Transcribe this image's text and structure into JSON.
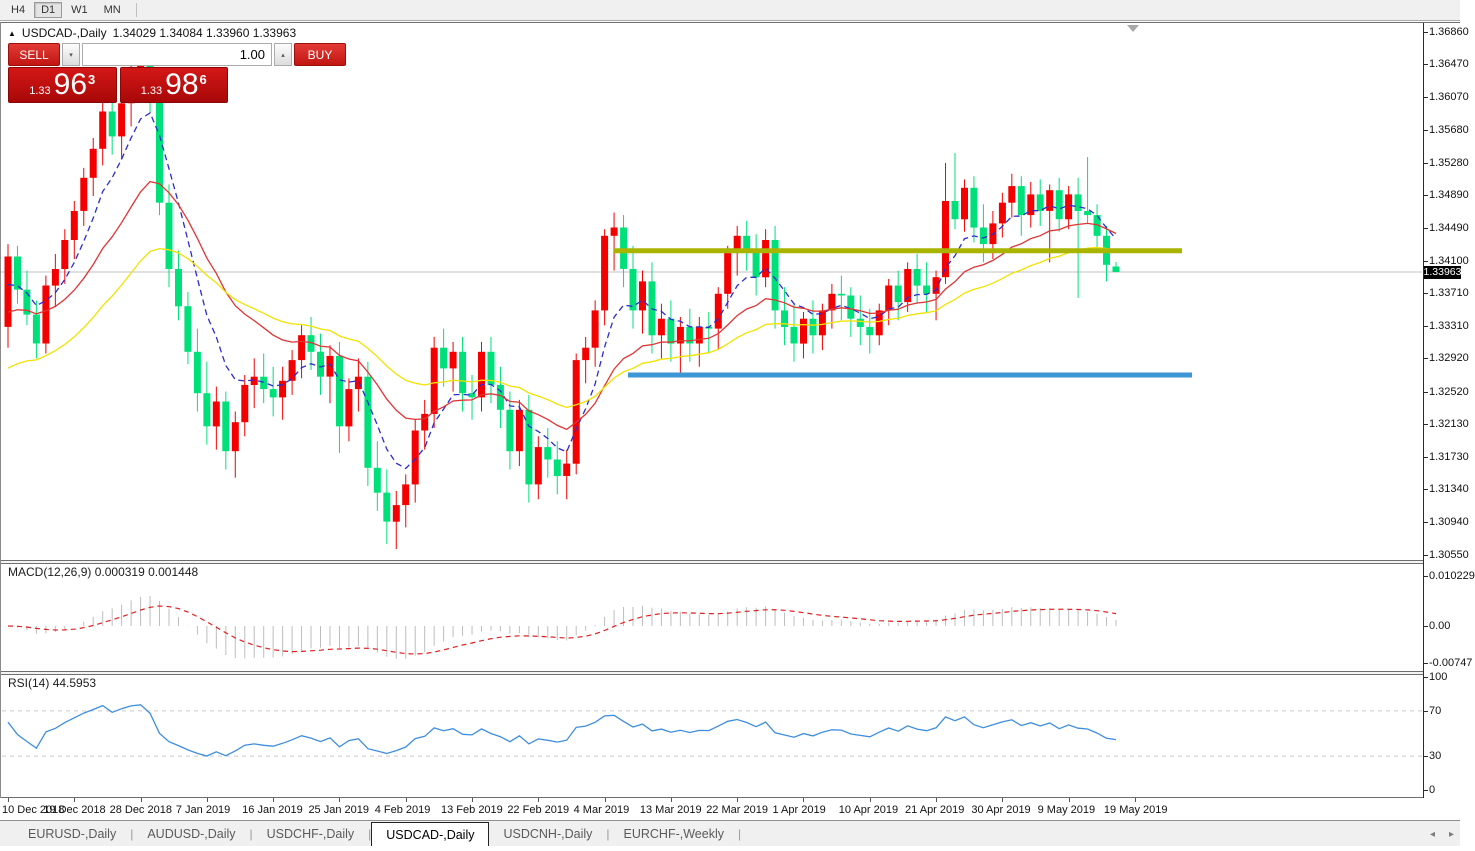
{
  "toolbar": {
    "timeframes": [
      {
        "label": "H4",
        "active": false
      },
      {
        "label": "D1",
        "active": true
      },
      {
        "label": "W1",
        "active": false
      },
      {
        "label": "MN",
        "active": false
      }
    ]
  },
  "chart_header": {
    "collapse_icon": "▲",
    "symbol_title": "USDCAD-,Daily",
    "ohlc_text": "1.34029 1.34084 1.33960 1.33963"
  },
  "one_click_panel": {
    "sell_label": "SELL",
    "buy_label": "BUY",
    "volume": "1.00",
    "spinner_down": "▾",
    "spinner_up": "▴",
    "sell_price": {
      "big_figure": "1.33",
      "pips": "96",
      "pipette": "3"
    },
    "buy_price": {
      "big_figure": "1.33",
      "pips": "98",
      "pipette": "6"
    }
  },
  "price_axis": {
    "labels": [
      "1.36860",
      "1.36470",
      "1.36070",
      "1.35680",
      "1.35280",
      "1.34890",
      "1.34490",
      "1.34100",
      "1.33710",
      "1.33310",
      "1.32920",
      "1.32520",
      "1.32130",
      "1.31730",
      "1.31340",
      "1.30940",
      "1.30550"
    ],
    "current_price": "1.33963"
  },
  "date_axis": {
    "labels": [
      "10 Dec 2018",
      "19 Dec 2018",
      "28 Dec 2018",
      "7 Jan 2019",
      "16 Jan 2019",
      "25 Jan 2019",
      "4 Feb 2019",
      "13 Feb 2019",
      "22 Feb 2019",
      "4 Mar 2019",
      "13 Mar 2019",
      "22 Mar 2019",
      "1 Apr 2019",
      "10 Apr 2019",
      "21 Apr 2019",
      "30 Apr 2019",
      "9 May 2019",
      "19 May 2019"
    ]
  },
  "macd_panel": {
    "name_label": "MACD(12,26,9)",
    "value_main": "0.000319",
    "value_signal": "0.001448",
    "axis_labels": [
      "0.010229",
      "0.00",
      "-0.00747"
    ]
  },
  "rsi_panel": {
    "name_label": "RSI(14)",
    "value": "44.5953",
    "axis_labels": [
      "100",
      "70",
      "30",
      "0"
    ]
  },
  "tabs": [
    {
      "label": "EURUSD-,Daily",
      "active": false
    },
    {
      "label": "AUDUSD-,Daily",
      "active": false
    },
    {
      "label": "USDCHF-,Daily",
      "active": false
    },
    {
      "label": "USDCAD-,Daily",
      "active": true
    },
    {
      "label": "USDCNH-,Daily",
      "active": false
    },
    {
      "label": "EURCHF-,Weekly",
      "active": false
    }
  ],
  "nav_arrows": {
    "left": "◂",
    "right": "▸"
  },
  "chart_data": {
    "type": "candlestick",
    "symbol": "USDCAD-",
    "timeframe": "Daily",
    "last_ohlc": {
      "open": 1.34029,
      "high": 1.34084,
      "low": 1.3396,
      "close": 1.33963
    },
    "price_axis_top": 1.3686,
    "price_axis_bottom": 1.3055,
    "bull_color": "#f40000",
    "bear_color": "#00e07a",
    "candles": [
      [
        1.333,
        1.343,
        1.3305,
        1.3415
      ],
      [
        1.3415,
        1.3428,
        1.3358,
        1.3375
      ],
      [
        1.3375,
        1.3398,
        1.3332,
        1.3345
      ],
      [
        1.3345,
        1.3362,
        1.3292,
        1.331
      ],
      [
        1.331,
        1.3392,
        1.3298,
        1.338
      ],
      [
        1.338,
        1.3418,
        1.3355,
        1.34
      ],
      [
        1.34,
        1.3448,
        1.3382,
        1.3435
      ],
      [
        1.3435,
        1.3482,
        1.3412,
        1.347
      ],
      [
        1.347,
        1.3522,
        1.3452,
        1.351
      ],
      [
        1.351,
        1.3558,
        1.3488,
        1.3545
      ],
      [
        1.3545,
        1.3602,
        1.3525,
        1.359
      ],
      [
        1.359,
        1.3618,
        1.3538,
        1.356
      ],
      [
        1.356,
        1.3612,
        1.3532,
        1.36
      ],
      [
        1.36,
        1.3648,
        1.3572,
        1.3635
      ],
      [
        1.3635,
        1.3662,
        1.3605,
        1.365
      ],
      [
        1.365,
        1.3664,
        1.3588,
        1.361
      ],
      [
        1.361,
        1.3628,
        1.3465,
        1.348
      ],
      [
        1.348,
        1.3502,
        1.3378,
        1.34
      ],
      [
        1.34,
        1.3422,
        1.3338,
        1.3355
      ],
      [
        1.3355,
        1.3372,
        1.3285,
        1.33
      ],
      [
        1.33,
        1.3328,
        1.3228,
        1.325
      ],
      [
        1.325,
        1.3288,
        1.3188,
        1.321
      ],
      [
        1.321,
        1.3258,
        1.3182,
        1.324
      ],
      [
        1.324,
        1.3252,
        1.3158,
        1.318
      ],
      [
        1.318,
        1.3228,
        1.3148,
        1.3215
      ],
      [
        1.3215,
        1.3272,
        1.3198,
        1.326
      ],
      [
        1.326,
        1.3292,
        1.3232,
        1.327
      ],
      [
        1.327,
        1.3298,
        1.3238,
        1.3255
      ],
      [
        1.3255,
        1.3282,
        1.3222,
        1.3245
      ],
      [
        1.3245,
        1.3282,
        1.3218,
        1.3265
      ],
      [
        1.3265,
        1.3302,
        1.3248,
        1.329
      ],
      [
        1.329,
        1.3332,
        1.3268,
        1.332
      ],
      [
        1.332,
        1.3342,
        1.3278,
        1.33
      ],
      [
        1.33,
        1.3322,
        1.3248,
        1.327
      ],
      [
        1.327,
        1.3308,
        1.3238,
        1.3295
      ],
      [
        1.3295,
        1.3312,
        1.3178,
        1.321
      ],
      [
        1.321,
        1.3268,
        1.3192,
        1.3255
      ],
      [
        1.3255,
        1.3292,
        1.3228,
        1.327
      ],
      [
        1.327,
        1.3288,
        1.3138,
        1.316
      ],
      [
        1.316,
        1.3192,
        1.3108,
        1.313
      ],
      [
        1.313,
        1.3158,
        1.3068,
        1.3095
      ],
      [
        1.3095,
        1.3132,
        1.3062,
        1.3115
      ],
      [
        1.3115,
        1.3152,
        1.3088,
        1.314
      ],
      [
        1.314,
        1.3218,
        1.3118,
        1.3205
      ],
      [
        1.3205,
        1.3242,
        1.3182,
        1.3225
      ],
      [
        1.3225,
        1.3318,
        1.3208,
        1.3305
      ],
      [
        1.3305,
        1.3328,
        1.3258,
        1.328
      ],
      [
        1.328,
        1.3312,
        1.3252,
        1.33
      ],
      [
        1.33,
        1.3318,
        1.3228,
        1.325
      ],
      [
        1.325,
        1.3272,
        1.3218,
        1.3245
      ],
      [
        1.3245,
        1.3312,
        1.3228,
        1.33
      ],
      [
        1.33,
        1.3318,
        1.3238,
        1.326
      ],
      [
        1.326,
        1.3282,
        1.3208,
        1.323
      ],
      [
        1.323,
        1.3252,
        1.3158,
        1.318
      ],
      [
        1.318,
        1.3242,
        1.3162,
        1.323
      ],
      [
        1.323,
        1.3248,
        1.3118,
        1.314
      ],
      [
        1.314,
        1.3198,
        1.3122,
        1.3185
      ],
      [
        1.3185,
        1.3208,
        1.3148,
        1.317
      ],
      [
        1.317,
        1.3192,
        1.3128,
        1.315
      ],
      [
        1.315,
        1.3182,
        1.3122,
        1.3165
      ],
      [
        1.3165,
        1.3298,
        1.3152,
        1.329
      ],
      [
        1.329,
        1.3318,
        1.3262,
        1.3305
      ],
      [
        1.3305,
        1.3362,
        1.3282,
        1.335
      ],
      [
        1.335,
        1.3448,
        1.3332,
        1.344
      ],
      [
        1.344,
        1.3468,
        1.3398,
        1.345
      ],
      [
        1.345,
        1.3465,
        1.3378,
        1.34
      ],
      [
        1.34,
        1.3428,
        1.3328,
        1.335
      ],
      [
        1.335,
        1.3398,
        1.3322,
        1.3385
      ],
      [
        1.3385,
        1.3408,
        1.3298,
        1.332
      ],
      [
        1.332,
        1.3358,
        1.3292,
        1.334
      ],
      [
        1.334,
        1.3362,
        1.3288,
        1.331
      ],
      [
        1.331,
        1.3342,
        1.3272,
        1.333
      ],
      [
        1.333,
        1.3352,
        1.3288,
        1.331
      ],
      [
        1.331,
        1.3342,
        1.3282,
        1.333
      ],
      [
        1.333,
        1.3348,
        1.3298,
        1.3328
      ],
      [
        1.3328,
        1.3378,
        1.3302,
        1.337
      ],
      [
        1.337,
        1.3428,
        1.3352,
        1.342
      ],
      [
        1.342,
        1.3452,
        1.3392,
        1.344
      ],
      [
        1.344,
        1.3458,
        1.3398,
        1.342
      ],
      [
        1.342,
        1.3442,
        1.3368,
        1.339
      ],
      [
        1.339,
        1.3448,
        1.3378,
        1.3435
      ],
      [
        1.3435,
        1.3452,
        1.3328,
        1.335
      ],
      [
        1.335,
        1.3378,
        1.3308,
        1.333
      ],
      [
        1.333,
        1.3358,
        1.3288,
        1.331
      ],
      [
        1.331,
        1.3348,
        1.3292,
        1.334
      ],
      [
        1.334,
        1.3362,
        1.3298,
        1.332
      ],
      [
        1.332,
        1.3358,
        1.3302,
        1.335
      ],
      [
        1.335,
        1.3382,
        1.3328,
        1.337
      ],
      [
        1.337,
        1.3392,
        1.3338,
        1.3368
      ],
      [
        1.3368,
        1.3378,
        1.3318,
        1.334
      ],
      [
        1.334,
        1.3368,
        1.3308,
        1.333
      ],
      [
        1.333,
        1.3352,
        1.3298,
        1.332
      ],
      [
        1.332,
        1.3358,
        1.3308,
        1.335
      ],
      [
        1.335,
        1.3388,
        1.3332,
        1.338
      ],
      [
        1.338,
        1.3398,
        1.3338,
        1.336
      ],
      [
        1.336,
        1.3408,
        1.3348,
        1.34
      ],
      [
        1.34,
        1.3418,
        1.3358,
        1.338
      ],
      [
        1.338,
        1.3408,
        1.3348,
        1.337
      ],
      [
        1.337,
        1.3398,
        1.3338,
        1.339
      ],
      [
        1.339,
        1.3528,
        1.3382,
        1.3482
      ],
      [
        1.3482,
        1.354,
        1.3448,
        1.346
      ],
      [
        1.346,
        1.3508,
        1.3445,
        1.3498
      ],
      [
        1.3498,
        1.3512,
        1.3432,
        1.345
      ],
      [
        1.345,
        1.3478,
        1.3408,
        1.343
      ],
      [
        1.343,
        1.347,
        1.3412,
        1.3455
      ],
      [
        1.3455,
        1.3492,
        1.3438,
        1.348
      ],
      [
        1.348,
        1.3515,
        1.3462,
        1.35
      ],
      [
        1.35,
        1.3512,
        1.344,
        1.3465
      ],
      [
        1.3465,
        1.3505,
        1.345,
        1.349
      ],
      [
        1.349,
        1.3508,
        1.3452,
        1.347
      ],
      [
        1.347,
        1.3502,
        1.3408,
        1.3495
      ],
      [
        1.3495,
        1.351,
        1.3445,
        1.346
      ],
      [
        1.346,
        1.35,
        1.3448,
        1.349
      ],
      [
        1.349,
        1.351,
        1.3365,
        1.347
      ],
      [
        1.347,
        1.3535,
        1.3455,
        1.3465
      ],
      [
        1.3465,
        1.3478,
        1.342,
        1.344
      ],
      [
        1.344,
        1.3452,
        1.3385,
        1.3405
      ],
      [
        1.34029,
        1.34084,
        1.3396,
        1.33963
      ]
    ],
    "moving_averages": [
      {
        "period": 7,
        "seed": 1.337,
        "color": "#2b2bd0",
        "style": "dashed"
      },
      {
        "period": 18,
        "seed": 1.334,
        "color": "#e03434",
        "style": "solid"
      },
      {
        "period": 34,
        "seed": 1.3272,
        "color": "#f2e200",
        "style": "solid"
      }
    ],
    "hlines": [
      {
        "name": "resistance-line",
        "price": 1.3422,
        "from_bar": 64,
        "to_bar": 124,
        "color": "#a8b400",
        "width": 5
      },
      {
        "name": "support-line",
        "price": 1.3272,
        "from_bar": 65.5,
        "to_bar": 125,
        "color": "#3d96d5",
        "width": 5
      }
    ],
    "current_price_line": {
      "price": 1.33963,
      "color": "#c0c0c0"
    },
    "macd": {
      "fast": 12,
      "slow": 26,
      "signal": 9,
      "hist_color": "#bdbdbd",
      "signal_color": "#e02020",
      "axis_top_value": 0.010229,
      "axis_bottom_value": -0.00747,
      "current_main": 0.000319,
      "current_signal": 0.001448
    },
    "rsi": {
      "period": 14,
      "color": "#3e8ede",
      "levels": [
        70,
        30
      ],
      "level_color": "#c9c9c9",
      "axis_max": 100,
      "axis_min": 0,
      "current": 44.5953
    }
  }
}
